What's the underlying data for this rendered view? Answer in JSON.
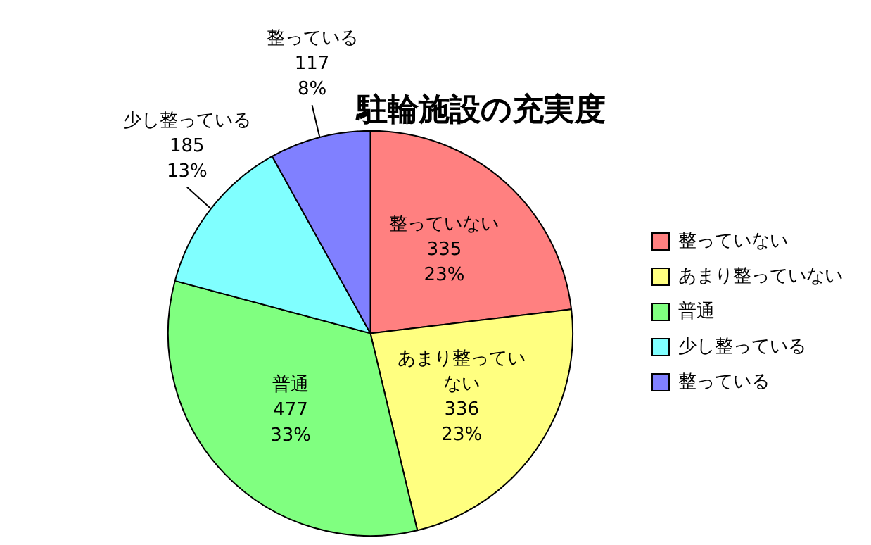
{
  "chart_data": {
    "type": "pie",
    "title": "駐輪施設の充実度",
    "categories": [
      "整っていない",
      "あまり整っていない",
      "普通",
      "少し整っている",
      "整っている"
    ],
    "values": [
      335,
      336,
      477,
      185,
      117
    ],
    "value_labels": [
      "335\n23%",
      "336\n23%",
      "477\n33%",
      "185\n13%",
      "117\n8%"
    ],
    "colors": [
      "#ff8080",
      "#ffff80",
      "#80ff80",
      "#80ffff",
      "#8080ff"
    ],
    "legend": "right"
  }
}
